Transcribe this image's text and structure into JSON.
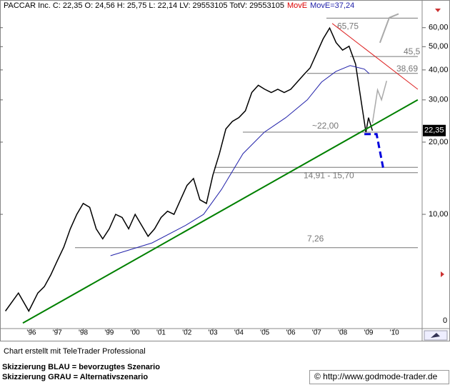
{
  "chart_data": {
    "type": "line",
    "header": {
      "text": "PACCAR Inc. C: 22,35 O: 24,56 H: 25,75 L: 22,14 LV: 29553105 TotV: 29553105",
      "ma_label": "MovE",
      "ma_value_label": "MovE=37,24"
    },
    "log_y": true,
    "grid": false,
    "xlim": [
      1994.79,
      2011.04
    ],
    "ylim": [
      3.34,
      70.6
    ],
    "xticks": [
      {
        "value": 1996,
        "label": "'96"
      },
      {
        "value": 1997,
        "label": "'97"
      },
      {
        "value": 1998,
        "label": "'98"
      },
      {
        "value": 1999,
        "label": "'99"
      },
      {
        "value": 2000,
        "label": "'00"
      },
      {
        "value": 2001,
        "label": "'01"
      },
      {
        "value": 2002,
        "label": "'02"
      },
      {
        "value": 2003,
        "label": "'03"
      },
      {
        "value": 2004,
        "label": "'04"
      },
      {
        "value": 2005,
        "label": "'05"
      },
      {
        "value": 2006,
        "label": "'06"
      },
      {
        "value": 2007,
        "label": "'07"
      },
      {
        "value": 2008,
        "label": "'08"
      },
      {
        "value": 2009,
        "label": "'09"
      },
      {
        "value": 2010,
        "label": "'10"
      }
    ],
    "yticks": [
      {
        "value": 60,
        "label": "60,00"
      },
      {
        "value": 50,
        "label": "50,00"
      },
      {
        "value": 40,
        "label": "40,00"
      },
      {
        "value": 30,
        "label": "30,00"
      },
      {
        "value": 20,
        "label": "20,00"
      },
      {
        "value": 10,
        "label": "10,00"
      }
    ],
    "y_bottom_label": "0",
    "last_price": {
      "value": 22.35,
      "label": "22,35"
    },
    "series": [
      {
        "color": "#000000",
        "width": 1.5,
        "x": [
          1995.0,
          1995.5,
          1995.9,
          1996.25,
          1996.5,
          1996.75,
          1997.0,
          1997.25,
          1997.5,
          1997.75,
          1998.0,
          1998.25,
          1998.5,
          1998.75,
          1999.0,
          1999.25,
          1999.5,
          1999.75,
          2000.0,
          2000.25,
          2000.5,
          2000.75,
          2001.0,
          2001.25,
          2001.5,
          2001.75,
          2002.0,
          2002.25,
          2002.5,
          2002.75,
          2003.0,
          2003.25,
          2003.5,
          2003.75,
          2004.0,
          2004.25,
          2004.5,
          2004.75,
          2005.0,
          2005.25,
          2005.5,
          2005.75,
          2006.0,
          2006.25,
          2006.5,
          2006.75,
          2007.0,
          2007.25,
          2007.5,
          2007.75,
          2008.0,
          2008.25,
          2008.5,
          2008.75,
          2008.9,
          2009.0,
          2009.15
        ],
        "values": [
          3.95,
          4.7,
          3.95,
          4.7,
          5.0,
          5.6,
          6.4,
          7.3,
          8.7,
          10,
          11.1,
          10.7,
          8.7,
          7.9,
          8.7,
          10,
          9.7,
          8.7,
          10,
          9.0,
          8.1,
          8.7,
          9.7,
          10.3,
          10,
          11.5,
          13.2,
          14.1,
          11.5,
          11.1,
          14.6,
          17.9,
          22.7,
          24.4,
          25.3,
          27.0,
          32.2,
          34.5,
          33.2,
          32.2,
          33.2,
          32.2,
          33.2,
          35.6,
          38.2,
          40.8,
          46.9,
          53.9,
          59.8,
          52,
          48.4,
          50.2,
          42.3,
          28,
          22,
          25.3,
          22.35
        ]
      },
      {
        "color": "#2222aa",
        "width": 1,
        "x": [
          1999.05,
          2000.65,
          2001.95,
          2002.64,
          2003.33,
          2004.16,
          2004.98,
          2005.81,
          2006.64,
          2007.19,
          2007.74,
          2008.29,
          2008.84,
          2009.03
        ],
        "values": [
          6.72,
          7.6,
          9.0,
          10,
          12.7,
          17.9,
          22,
          25.3,
          30,
          35.6,
          39.4,
          41.7,
          40.3,
          38.6
        ]
      },
      {
        "color": "#008000",
        "width": 2,
        "x": [
          1995.67,
          2010.9
        ],
        "values": [
          3.52,
          30
        ]
      },
      {
        "color": "#dd2222",
        "width": 1,
        "x": [
          2007.6,
          2010.9
        ],
        "values": [
          62.5,
          33.2
        ]
      },
      {
        "color": "#0000dd",
        "width": 3,
        "style": "dashed",
        "x": [
          2008.84,
          2009.31,
          2009.58
        ],
        "values": [
          21.6,
          21.6,
          15.3
        ]
      },
      {
        "color": "#aaaaaa",
        "width": 1.5,
        "x": [
          2009.15,
          2009.35,
          2009.5,
          2009.7
        ],
        "values": [
          24,
          33,
          30,
          36
        ]
      },
      {
        "color": "#aaaaaa",
        "width": 2,
        "x": [
          2009.44,
          2009.8,
          2010.16
        ],
        "values": [
          51.9,
          66,
          68.5
        ]
      }
    ],
    "levels": [
      {
        "values": [
          65.75
        ],
        "label": "65,75"
      },
      {
        "values": [
          45.5
        ],
        "label": "45,5"
      },
      {
        "values": [
          38.69
        ],
        "label": "38,69"
      },
      {
        "values": [
          22
        ],
        "label": "~22,00"
      },
      {
        "values": [
          14.91,
          15.7
        ],
        "label": "14,91 - 15,70"
      },
      {
        "values": [
          7.26
        ],
        "label": "7,26"
      }
    ],
    "footer": {
      "credit": "Chart erstellt mit TeleTrader Professional",
      "legend_blue": "Skizzierung BLAU = bevorzugtes Szenario",
      "legend_gray": "Skizzierung GRAU = Alternativszenario",
      "source": "© http://www.godmode-trader.de"
    }
  }
}
